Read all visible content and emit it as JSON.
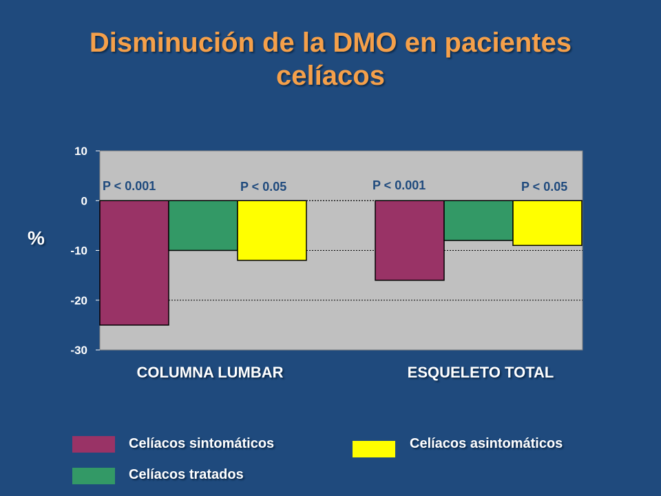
{
  "title_lines": [
    "Disminución de la DMO en pacientes",
    "celíacos"
  ],
  "colors": {
    "background": "#1f4a7d",
    "title": "#f5a04a",
    "plot_area": "#c0c0c0",
    "annotation": "#1f4a7d"
  },
  "chart_data": {
    "type": "bar",
    "title": "Disminución de la DMO en pacientes celíacos",
    "ylabel": "%",
    "xlabel": "",
    "categories": [
      "COLUMNA LUMBAR",
      "ESQUELETO TOTAL"
    ],
    "ylim": [
      -30,
      10
    ],
    "yticks": [
      10,
      0,
      -10,
      -20,
      -30
    ],
    "grid": true,
    "series": [
      {
        "name": "Celíacos sintomáticos",
        "color": "#993366",
        "values": [
          -25,
          -16
        ]
      },
      {
        "name": "Celíacos tratados",
        "color": "#339966",
        "values": [
          -10,
          -8
        ]
      },
      {
        "name": "Celíacos asintomáticos",
        "color": "#ffff00",
        "values": [
          -12,
          -9
        ]
      }
    ],
    "annotations": [
      {
        "category": 0,
        "series": 0,
        "text": "P < 0.001"
      },
      {
        "category": 0,
        "series": 2,
        "text": "P < 0.05"
      },
      {
        "category": 1,
        "series": 0,
        "text": "P < 0.001"
      },
      {
        "category": 1,
        "series": 2,
        "text": "P < 0.05"
      }
    ],
    "legend_position": "bottom"
  }
}
